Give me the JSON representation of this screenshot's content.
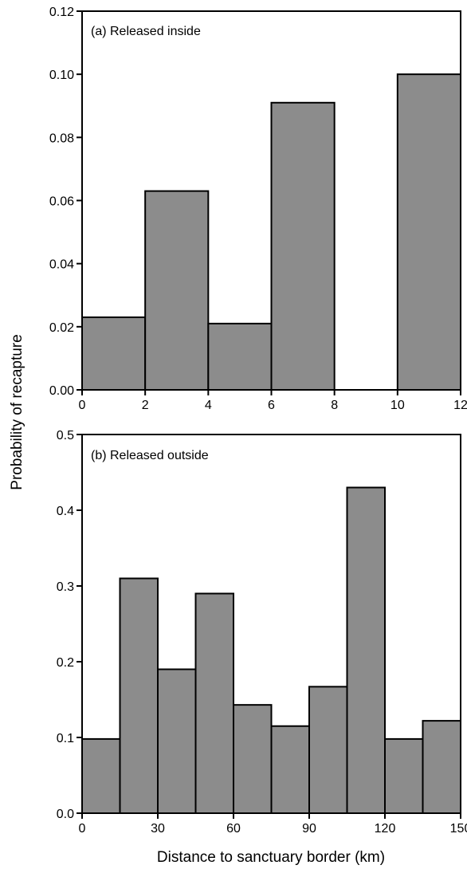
{
  "chart_data": [
    {
      "type": "bar",
      "panel_label": "(a) Released inside",
      "bin_edges": [
        0,
        2,
        4,
        6,
        8,
        10,
        12
      ],
      "values": [
        0.023,
        0.063,
        0.021,
        0.091,
        0.0,
        0.1
      ],
      "x_ticks": [
        0,
        2,
        4,
        6,
        8,
        10,
        12
      ],
      "y_ticks": [
        0.0,
        0.02,
        0.04,
        0.06,
        0.08,
        0.1,
        0.12
      ],
      "y_tick_labels": [
        "0.00",
        "0.02",
        "0.04",
        "0.06",
        "0.08",
        "0.10",
        "0.12"
      ],
      "xlim": [
        0,
        12
      ],
      "ylim": [
        0,
        0.12
      ],
      "bar_color": "#8c8c8c"
    },
    {
      "type": "bar",
      "panel_label": "(b) Released outside",
      "bin_edges": [
        0,
        15,
        30,
        45,
        60,
        75,
        90,
        105,
        120,
        135,
        150
      ],
      "values": [
        0.098,
        0.31,
        0.19,
        0.29,
        0.143,
        0.115,
        0.167,
        0.43,
        0.098,
        0.122
      ],
      "x_ticks": [
        0,
        30,
        60,
        90,
        120,
        150
      ],
      "y_ticks": [
        0.0,
        0.1,
        0.2,
        0.3,
        0.4,
        0.5
      ],
      "y_tick_labels": [
        "0.0",
        "0.1",
        "0.2",
        "0.3",
        "0.4",
        "0.5"
      ],
      "xlim": [
        0,
        150
      ],
      "ylim": [
        0,
        0.5
      ],
      "bar_color": "#8c8c8c"
    }
  ],
  "ylabel": "Probability of recapture",
  "xlabel": "Distance to sanctuary border (km)"
}
